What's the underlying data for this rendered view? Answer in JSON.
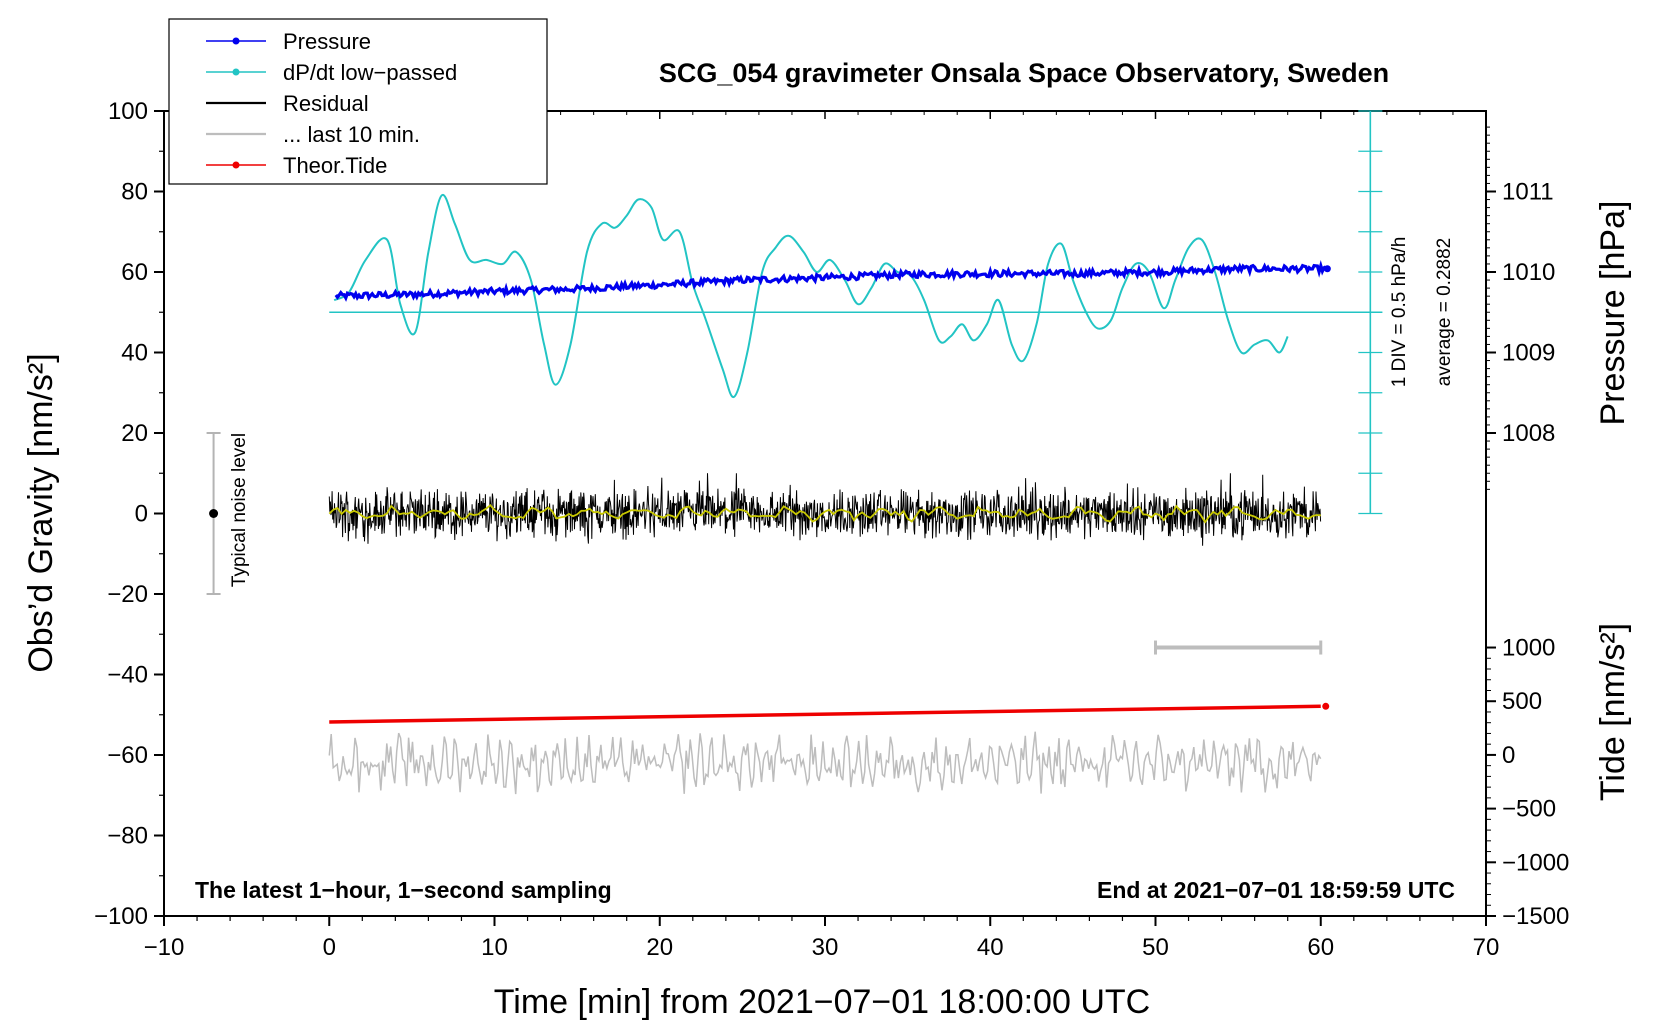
{
  "colors": {
    "pressure": "#0000ee",
    "dpdt": "#22c4c4",
    "residual": "#000000",
    "last10": "#bdbdbd",
    "tide": "#ee0000",
    "smooth": "#c8c800",
    "noise": "#b4b4b4"
  },
  "legend": {
    "items": [
      {
        "label": "Pressure",
        "color": "#0000ee",
        "marker": true
      },
      {
        "label": "dP/dt low−passed",
        "color": "#22c4c4",
        "marker": true
      },
      {
        "label": "Residual",
        "color": "#000000",
        "marker": false
      },
      {
        "label": "... last 10 min.",
        "color": "#bdbdbd",
        "marker": false
      },
      {
        "label": "Theor.Tide",
        "color": "#ee0000",
        "marker": true
      }
    ]
  },
  "annotations": {
    "noise_label": "Typical noise level",
    "div_label": "1 DIV = 0.5 hPa/h",
    "avg_label": "average = 0.2882",
    "bottom_left": "The latest 1−hour, 1−second sampling",
    "bottom_right": "End at 2021−07−01 18:59:59 UTC"
  },
  "chart_data": {
    "type": "line",
    "title": "SCG_054 gravimeter Onsala Space Observatory, Sweden",
    "xlabel": "Time [min] from 2021−07−01 18:00:00 UTC",
    "ylabel_left": "Obs’d Gravity [nm/s²]",
    "ylabel_right_pressure": "Pressure [hPa]",
    "ylabel_right_tide": "Tide [nm/s²]",
    "xlim": [
      -10,
      70
    ],
    "ylim": [
      -100,
      100
    ],
    "x_ticks": [
      -10,
      0,
      10,
      20,
      30,
      40,
      50,
      60,
      70
    ],
    "x_tick_labels": [
      "−10",
      "0",
      "10",
      "20",
      "30",
      "40",
      "50",
      "60",
      "70"
    ],
    "y_ticks": [
      -100,
      -80,
      -60,
      -40,
      -20,
      0,
      20,
      40,
      60,
      80,
      100
    ],
    "y_tick_labels": [
      "−100",
      "−80",
      "−60",
      "−40",
      "−20",
      "0",
      "20",
      "40",
      "60",
      "80",
      "100"
    ],
    "pressure_axis": {
      "ticks": [
        1008,
        1009,
        1010,
        1011
      ],
      "tick_labels": [
        "1008",
        "1009",
        "1010",
        "1011"
      ],
      "map": {
        "hPa": [
          1008,
          1011
        ],
        "gravity": [
          20,
          80
        ]
      }
    },
    "tide_axis": {
      "ticks": [
        -1500,
        -1000,
        -500,
        0,
        500,
        1000
      ],
      "tick_labels": [
        "−1500",
        "−1000",
        "−500",
        "0",
        "500",
        "1000"
      ],
      "map": {
        "tide": [
          -1500,
          1000
        ],
        "gravity": [
          -100,
          -33.3
        ]
      }
    },
    "series": [
      {
        "name": "Pressure",
        "unit": "hPa",
        "x": [
          0,
          5,
          10,
          15,
          20,
          25,
          30,
          35,
          40,
          45,
          50,
          55,
          60
        ],
        "values": [
          1009.7,
          1009.72,
          1009.76,
          1009.79,
          1009.84,
          1009.9,
          1009.93,
          1009.97,
          1009.98,
          1009.98,
          1010.0,
          1010.04,
          1010.04
        ]
      },
      {
        "name": "dP/dt low-passed",
        "unit": "gravity-axis units (baseline 50)",
        "x": [
          0.3,
          1.2,
          2.2,
          3.5,
          4.3,
          5.2,
          6.0,
          6.8,
          7.6,
          8.5,
          9.5,
          10.5,
          11.3,
          12.2,
          13.0,
          13.7,
          14.6,
          15.6,
          16.5,
          17.3,
          18.0,
          18.7,
          19.5,
          20.2,
          21.2,
          22.0,
          22.8,
          23.8,
          24.5,
          25.3,
          26.2,
          27.0,
          27.8,
          28.7,
          29.5,
          30.3,
          31.2,
          32.0,
          32.8,
          33.6,
          34.4,
          35.2,
          36.0,
          36.9,
          37.6,
          38.3,
          39.0,
          39.8,
          40.5,
          41.3,
          42.0,
          42.8,
          43.5,
          44.3,
          45.0,
          45.8,
          46.5,
          47.3,
          48.0,
          48.8,
          49.6,
          50.5,
          51.2,
          52.0,
          52.8,
          53.6,
          54.4,
          55.2,
          56.0,
          56.8,
          57.5,
          58.0
        ],
        "values": [
          53,
          55,
          63,
          68,
          52,
          45,
          65,
          79,
          72,
          63,
          63,
          62,
          65,
          58,
          42,
          32,
          42,
          65,
          72,
          71,
          74,
          78,
          76,
          68,
          70,
          57,
          48,
          36,
          29,
          40,
          60,
          66,
          69,
          65,
          60,
          63,
          58,
          52,
          56,
          62,
          60,
          59,
          53,
          43,
          44,
          47,
          43,
          47,
          53,
          42,
          38,
          47,
          62,
          67,
          58,
          50,
          46,
          48,
          56,
          62,
          60,
          51,
          58,
          66,
          68,
          60,
          48,
          40,
          42,
          43,
          40,
          44
        ]
      },
      {
        "name": "Residual",
        "x_range": [
          0,
          60
        ],
        "amplitude": [
          -8,
          10
        ],
        "center": 0
      },
      {
        "name": "... last 10 min.",
        "x_range": [
          50,
          60
        ],
        "value": -33.3
      },
      {
        "name": "Theor.Tide",
        "unit": "gravity-axis units",
        "x": [
          0,
          60
        ],
        "values": [
          -51.8,
          -47.9
        ]
      },
      {
        "name": "Noise trace (grey)",
        "x_range": [
          0,
          60
        ],
        "center": -62,
        "amplitude": [
          -70,
          -53
        ]
      }
    ],
    "noise_bar": {
      "x": -7,
      "center": 0,
      "range": [
        -20,
        20
      ]
    },
    "dpdt_axis": {
      "x": 63,
      "baseline": 50,
      "range": [
        0,
        100
      ],
      "div": 0.5,
      "unit": "hPa/h"
    }
  }
}
